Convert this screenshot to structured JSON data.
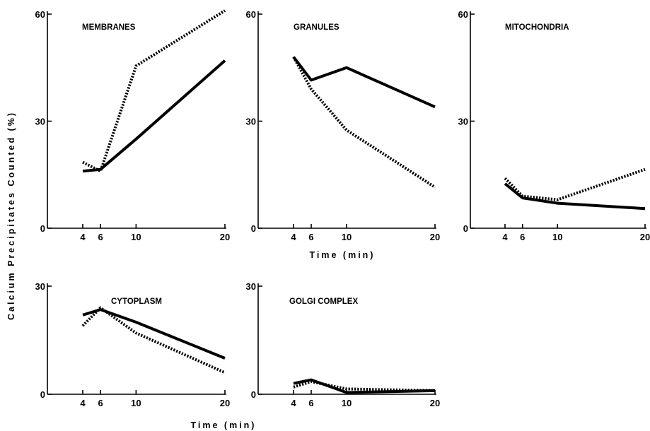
{
  "chart_data": {
    "ylabel": "Calcium Precipitates Counted (%)",
    "xlabel": "Time (min)",
    "x_ticks": [
      4,
      6,
      10,
      20
    ],
    "panels": [
      {
        "type": "line",
        "title": "MEMBRANES",
        "x": [
          4,
          6,
          10,
          20
        ],
        "ylim": [
          0,
          60
        ],
        "yticks": [
          0,
          30,
          60
        ],
        "series": [
          {
            "style": "solid",
            "values": [
              16,
              16.5,
              25,
              47
            ]
          },
          {
            "style": "dashed",
            "values": [
              18.5,
              16,
              45.5,
              61
            ]
          }
        ]
      },
      {
        "type": "line",
        "title": "GRANULES",
        "x": [
          4,
          6,
          10,
          20
        ],
        "ylim": [
          0,
          60
        ],
        "yticks": [
          0,
          30,
          60
        ],
        "series": [
          {
            "style": "solid",
            "values": [
              48,
              41.5,
              45,
              34
            ]
          },
          {
            "style": "dashed",
            "values": [
              48,
              39,
              27.5,
              11.5
            ]
          }
        ]
      },
      {
        "type": "line",
        "title": "MITOCHONDRIA",
        "x": [
          4,
          6,
          10,
          20
        ],
        "ylim": [
          0,
          60
        ],
        "yticks": [
          0,
          30,
          60
        ],
        "series": [
          {
            "style": "solid",
            "values": [
              12.5,
              8.5,
              7,
              5.5
            ]
          },
          {
            "style": "dashed",
            "values": [
              14,
              9,
              8,
              16.5
            ]
          }
        ]
      },
      {
        "type": "line",
        "title": "CYTOPLASM",
        "x": [
          4,
          6,
          10,
          20
        ],
        "ylim": [
          0,
          30
        ],
        "yticks": [
          0,
          30
        ],
        "series": [
          {
            "style": "solid",
            "values": [
              22,
              23.5,
              20,
              10
            ]
          },
          {
            "style": "dashed",
            "values": [
              19,
              24,
              17,
              6
            ]
          }
        ]
      },
      {
        "type": "line",
        "title": "GOLGI COMPLEX",
        "x": [
          4,
          6,
          10,
          20
        ],
        "ylim": [
          0,
          30
        ],
        "yticks": [
          0,
          30
        ],
        "series": [
          {
            "style": "solid",
            "values": [
              3,
              4,
              0.5,
              1
            ]
          },
          {
            "style": "dashed",
            "values": [
              2,
              3.5,
              1.5,
              1
            ]
          }
        ]
      }
    ]
  }
}
